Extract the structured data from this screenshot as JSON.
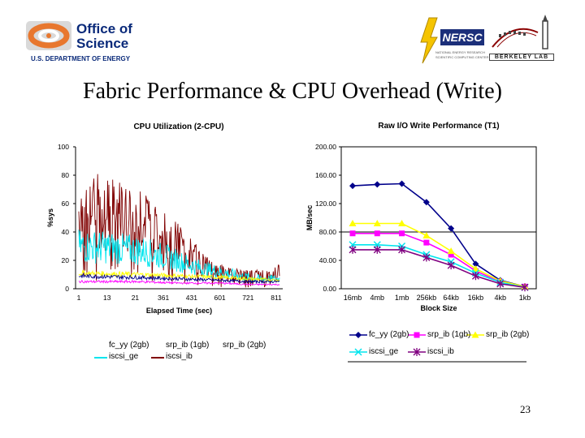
{
  "header": {
    "office_logo": {
      "line1": "Office of",
      "line2": "Science",
      "line3": "U.S. DEPARTMENT OF ENERGY"
    },
    "nersc_logo": {
      "name": "NERSC",
      "sub1": "NATIONAL ENERGY RESEARCH",
      "sub2": "SCIENTIFIC COMPUTING CENTER"
    },
    "lab_logo": {
      "name": "BERKELEY LAB"
    }
  },
  "slide": {
    "title": "Fabric Performance & CPU Overhead (Write)",
    "page_number": "23"
  },
  "colors": {
    "fc_yy": "#00008b",
    "srp_ib_1gb": "#ff00ff",
    "srp_ib_2gb": "#ffff00",
    "iscsi_ge": "#00e5ee",
    "iscsi_ib": "#800000"
  },
  "chart_data": [
    {
      "type": "line",
      "title": "CPU Utilization (2-CPU)",
      "xlabel": "Elapsed Time (sec)",
      "ylabel": "%sys",
      "ylim": [
        0,
        100
      ],
      "yticks": [
        "0",
        "20",
        "40",
        "60",
        "80",
        "100"
      ],
      "xticks": [
        "1",
        "13",
        "21",
        "361",
        "431",
        "601",
        "721",
        "811"
      ],
      "legend": {
        "rows": [
          [
            "fc_yy (2gb)",
            "srp_ib (1gb)",
            "srp_ib (2gb)"
          ],
          [
            "iscsi_ge",
            "iscsi_ib"
          ]
        ]
      },
      "series": [
        {
          "name": "iscsi_ib",
          "color": "#800000",
          "trend": [
            [
              0,
              55
            ],
            [
              0.12,
              54
            ],
            [
              0.24,
              50
            ],
            [
              0.35,
              44
            ],
            [
              0.45,
              36
            ],
            [
              0.55,
              25
            ],
            [
              0.65,
              14
            ],
            [
              0.75,
              10
            ],
            [
              0.85,
              9
            ],
            [
              0.95,
              9
            ],
            [
              1.0,
              12
            ]
          ]
        },
        {
          "name": "iscsi_ge",
          "color": "#00e5ee",
          "trend": [
            [
              0,
              30
            ],
            [
              0.15,
              29
            ],
            [
              0.3,
              27
            ],
            [
              0.45,
              22
            ],
            [
              0.55,
              17
            ],
            [
              0.62,
              14
            ],
            [
              0.7,
              12
            ],
            [
              0.8,
              9
            ],
            [
              0.9,
              7
            ],
            [
              1.0,
              7
            ]
          ]
        },
        {
          "name": "srp_ib (2gb)",
          "color": "#ffff00",
          "trend": [
            [
              0,
              11
            ],
            [
              0.3,
              10
            ],
            [
              0.5,
              9
            ],
            [
              0.7,
              8
            ],
            [
              0.85,
              7
            ],
            [
              1.0,
              6
            ]
          ]
        },
        {
          "name": "fc_yy (2gb)",
          "color": "#00008b",
          "trend": [
            [
              0,
              9
            ],
            [
              0.3,
              8
            ],
            [
              0.5,
              7
            ],
            [
              0.7,
              6
            ],
            [
              0.85,
              5
            ],
            [
              1.0,
              5
            ]
          ]
        },
        {
          "name": "srp_ib (1gb)",
          "color": "#ff00ff",
          "trend": [
            [
              0,
              5
            ],
            [
              0.3,
              5
            ],
            [
              0.5,
              4
            ],
            [
              0.7,
              4
            ],
            [
              0.85,
              3
            ],
            [
              1.0,
              3
            ]
          ]
        }
      ]
    },
    {
      "type": "line",
      "title": "Raw I/O Write Performance (T1)",
      "xlabel": "Block Size",
      "ylabel": "MB/sec",
      "ylim": [
        0,
        200
      ],
      "yticks": [
        "0.00",
        "40.00",
        "80.00",
        "120.00",
        "160.00",
        "200.00"
      ],
      "categories": [
        "16mb",
        "4mb",
        "1mb",
        "256kb",
        "64kb",
        "16kb",
        "4kb",
        "1kb"
      ],
      "series": [
        {
          "name": "fc_yy (2gb)",
          "color": "#00008b",
          "marker": "diamond",
          "values": [
            145,
            147,
            148,
            122,
            85,
            35,
            12,
            3
          ]
        },
        {
          "name": "srp_ib (1gb)",
          "color": "#ff00ff",
          "marker": "square",
          "values": [
            78,
            78,
            78,
            65,
            48,
            25,
            10,
            3
          ]
        },
        {
          "name": "srp_ib (2gb)",
          "color": "#ffff00",
          "marker": "triangle",
          "values": [
            92,
            92,
            92,
            75,
            53,
            28,
            11,
            3
          ]
        },
        {
          "name": "iscsi_ge",
          "color": "#00e5ee",
          "marker": "x",
          "values": [
            62,
            62,
            60,
            48,
            38,
            22,
            9,
            2
          ]
        },
        {
          "name": "iscsi_ib",
          "color": "#800080",
          "marker": "star",
          "values": [
            55,
            55,
            55,
            44,
            33,
            18,
            7,
            2
          ]
        }
      ],
      "legend_labels": [
        "fc_yy (2gb)",
        "srp_ib (1gb)",
        "srp_ib (2gb)",
        "iscsi_ge",
        "iscsi_ib"
      ]
    }
  ]
}
